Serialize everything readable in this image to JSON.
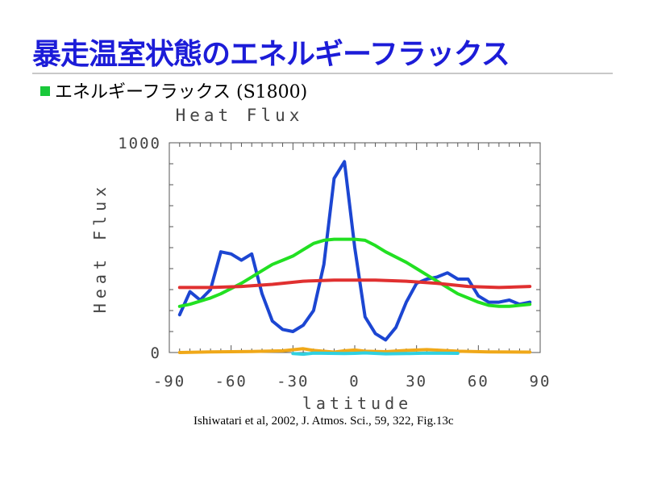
{
  "slide": {
    "title": "暴走温室状態のエネルギーフラックス",
    "bullet": "エネルギーフラックス (S1800)",
    "caption": "Ishiwatari et al, 2002, J. Atmos. Sci., 59, 322, Fig.13c"
  },
  "chart_data": {
    "type": "line",
    "title": "Heat Flux",
    "xlabel": "latitude",
    "ylabel": "Heat Flux",
    "xlim": [
      -90,
      90
    ],
    "ylim": [
      0,
      1000
    ],
    "x_ticks": [
      -90,
      -60,
      -30,
      0,
      30,
      60,
      90
    ],
    "y_ticks": [
      0,
      1000
    ],
    "grid": false,
    "legend": "none",
    "series": [
      {
        "color": "#1c46d2",
        "x": [
          -85,
          -80,
          -75,
          -70,
          -65,
          -60,
          -55,
          -50,
          -45,
          -40,
          -35,
          -30,
          -25,
          -20,
          -15,
          -10,
          -5,
          0,
          5,
          10,
          15,
          20,
          25,
          30,
          35,
          40,
          45,
          50,
          55,
          60,
          65,
          70,
          75,
          80,
          85
        ],
        "values": [
          180,
          290,
          250,
          300,
          480,
          470,
          440,
          470,
          280,
          150,
          110,
          100,
          130,
          200,
          420,
          830,
          910,
          500,
          170,
          90,
          60,
          120,
          240,
          330,
          350,
          360,
          380,
          350,
          350,
          270,
          240,
          240,
          250,
          230,
          240
        ]
      },
      {
        "color": "#22e022",
        "x": [
          -85,
          -80,
          -75,
          -70,
          -65,
          -60,
          -55,
          -50,
          -45,
          -40,
          -35,
          -30,
          -25,
          -20,
          -15,
          -10,
          -5,
          0,
          5,
          10,
          15,
          20,
          25,
          30,
          35,
          40,
          45,
          50,
          55,
          60,
          65,
          70,
          75,
          80,
          85
        ],
        "values": [
          220,
          230,
          245,
          260,
          280,
          305,
          330,
          360,
          390,
          420,
          440,
          460,
          490,
          520,
          535,
          540,
          540,
          540,
          535,
          510,
          480,
          455,
          430,
          400,
          370,
          340,
          310,
          280,
          260,
          240,
          225,
          220,
          220,
          225,
          230
        ]
      },
      {
        "color": "#e03030",
        "x": [
          -85,
          -70,
          -55,
          -40,
          -25,
          -10,
          0,
          10,
          25,
          40,
          55,
          70,
          85
        ],
        "values": [
          310,
          310,
          315,
          325,
          340,
          345,
          345,
          345,
          340,
          330,
          315,
          310,
          315
        ]
      },
      {
        "color": "#f0a818",
        "x": [
          -85,
          -70,
          -50,
          -35,
          -25,
          -20,
          -10,
          -5,
          0,
          5,
          15,
          25,
          35,
          50,
          65,
          85
        ],
        "values": [
          0,
          3,
          5,
          8,
          18,
          10,
          2,
          8,
          12,
          6,
          4,
          10,
          14,
          6,
          3,
          2
        ]
      },
      {
        "color": "#30d0e0",
        "x": [
          -30,
          -25,
          -20,
          -5,
          0,
          5,
          15,
          25,
          35,
          50
        ],
        "values": [
          -5,
          -8,
          -3,
          -5,
          -4,
          -2,
          -6,
          -5,
          -3,
          -4
        ]
      }
    ]
  }
}
